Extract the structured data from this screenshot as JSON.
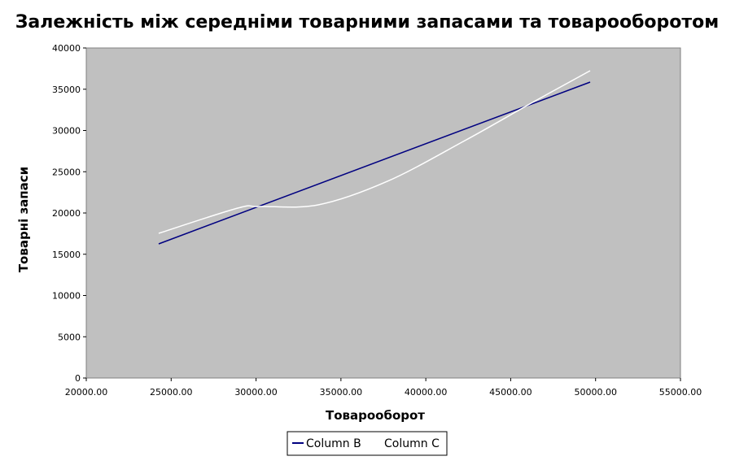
{
  "chart_data": {
    "type": "line",
    "title": "Залежність між середніми товарними запасами та товарооборотом",
    "xlabel": "Товарооборот",
    "ylabel": "Товарні запаси",
    "xlim": [
      20000,
      55000
    ],
    "ylim": [
      0,
      40000
    ],
    "x_ticks": [
      "20000.00",
      "25000.00",
      "30000.00",
      "35000.00",
      "40000.00",
      "45000.00",
      "50000.00",
      "55000.00"
    ],
    "y_ticks": [
      "0",
      "5000",
      "10000",
      "15000",
      "20000",
      "25000",
      "30000",
      "35000",
      "40000"
    ],
    "grid": false,
    "legend_position": "bottom",
    "plot_background": "#c0c0c0",
    "series": [
      {
        "name": "Column B",
        "color": "#000080",
        "smooth": false,
        "x": [
          24267,
          49678
        ],
        "y": [
          16256,
          35862
        ]
      },
      {
        "name": "Column C",
        "color": "#ffffff",
        "smooth": true,
        "x": [
          24267,
          28918,
          30212,
          33665,
          37740,
          42295,
          46370,
          49678
        ],
        "y": [
          17537,
          20591,
          20788,
          20985,
          23843,
          28768,
          33498,
          37241
        ]
      }
    ]
  }
}
